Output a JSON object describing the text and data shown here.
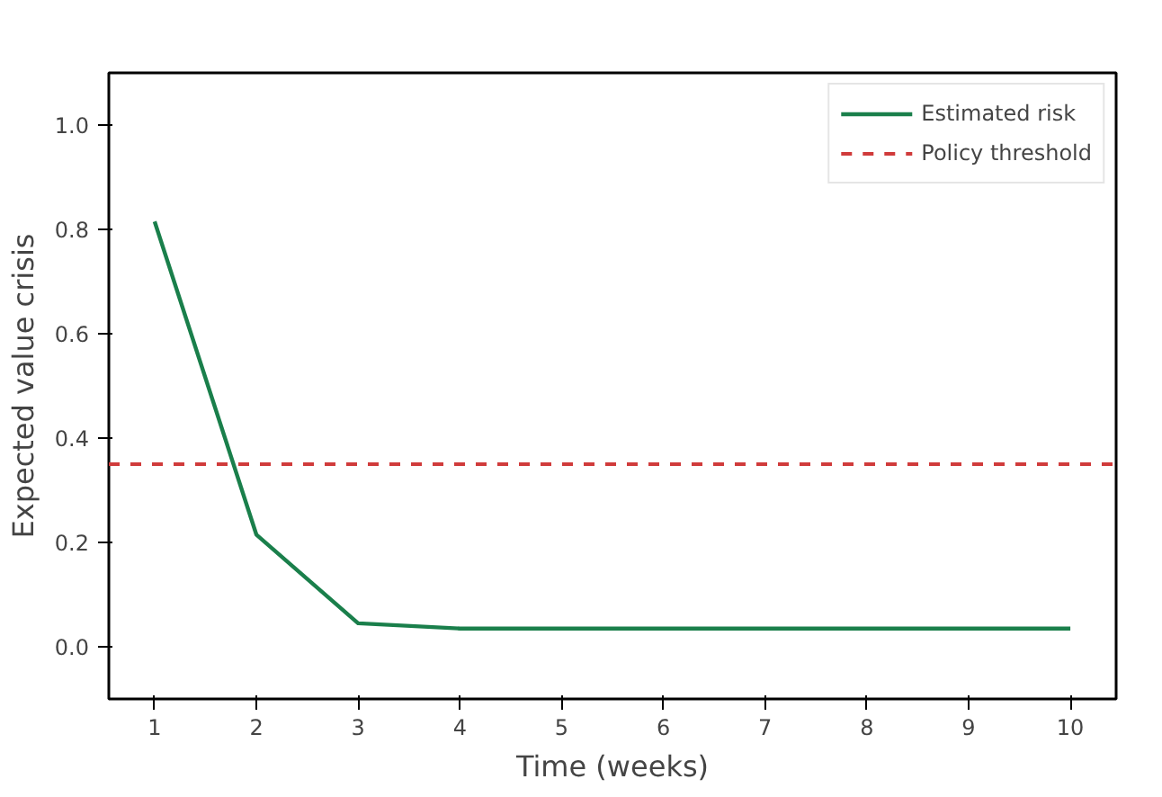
{
  "chart_data": {
    "type": "line",
    "xlabel": "Time (weeks)",
    "ylabel": "Expected value crisis",
    "x": [
      1,
      2,
      3,
      4,
      5,
      6,
      7,
      8,
      9,
      10
    ],
    "series": [
      {
        "name": "Estimated risk",
        "color": "#1a7f4b",
        "values": [
          0.815,
          0.215,
          0.045,
          0.035,
          0.035,
          0.035,
          0.035,
          0.035,
          0.035,
          0.035
        ]
      }
    ],
    "ref_lines": [
      {
        "axis": "y",
        "value": 0.35,
        "label": "Policy threshold",
        "color": "#d03b3b",
        "line_style": "dashed"
      }
    ],
    "xlim": [
      0.55,
      10.45
    ],
    "ylim": [
      -0.1,
      1.1
    ],
    "xticks": [
      1,
      2,
      3,
      4,
      5,
      6,
      7,
      8,
      9,
      10
    ],
    "yticks": [
      {
        "value": 0,
        "label": "0.0"
      },
      0.2,
      0.4,
      0.6,
      0.8,
      {
        "value": 1,
        "label": "1.0"
      }
    ],
    "grid": false,
    "legend": "top right",
    "marker": "none",
    "line_style": "solid"
  }
}
